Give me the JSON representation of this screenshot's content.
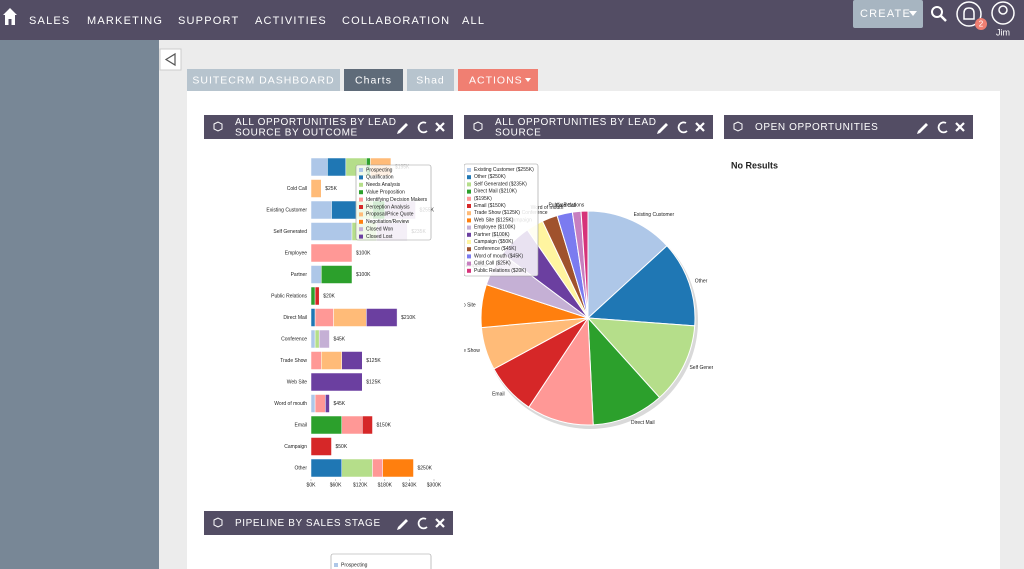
{
  "nav": {
    "items": [
      "SALES",
      "MARKETING",
      "SUPPORT",
      "ACTIVITIES",
      "COLLABORATION",
      "ALL"
    ],
    "create": "CREATE",
    "notifications": "2",
    "user": "Jim"
  },
  "tabs": [
    "SUITECRM DASHBOARD",
    "Charts",
    "Shad",
    "ACTIONS"
  ],
  "dashlets": [
    {
      "title_lines": [
        "ALL OPPORTUNITIES BY LEAD",
        "SOURCE BY OUTCOME"
      ],
      "chart": {
        "type": "bar",
        "categories": [
          null,
          "Cold Call",
          "Existing Customer",
          "Self Generated",
          "Employee",
          "Partner",
          "Public Relations",
          "Direct Mail",
          "Conference",
          "Trade Show",
          "Web Site",
          "Word of mouth",
          "Email",
          "Campaign",
          "Other"
        ],
        "series": [
          {
            "name": "Prospecting",
            "color": "#aec7e8",
            "values": [
              40,
              0,
              50,
              100,
              0,
              25,
              0,
              0,
              10,
              0,
              0,
              10,
              0,
              0,
              0
            ]
          },
          {
            "name": "Qualification",
            "color": "#1f77b4",
            "values": [
              45,
              0,
              60,
              0,
              0,
              0,
              0,
              10,
              0,
              0,
              0,
              0,
              0,
              0,
              75
            ]
          },
          {
            "name": "Needs Analysis",
            "color": "#b5de8a",
            "values": [
              50,
              0,
              40,
              60,
              0,
              0,
              0,
              0,
              10,
              0,
              0,
              0,
              0,
              0,
              75
            ]
          },
          {
            "name": "Value Proposition",
            "color": "#2ca02c",
            "values": [
              10,
              0,
              30,
              0,
              0,
              75,
              10,
              0,
              0,
              0,
              0,
              0,
              75,
              0,
              0
            ]
          },
          {
            "name": "Identifying Decision Makers",
            "color": "#ff9896",
            "values": [
              0,
              0,
              0,
              0,
              100,
              0,
              0,
              45,
              0,
              25,
              0,
              25,
              50,
              0,
              25
            ]
          },
          {
            "name": "Perception Analysis",
            "color": "#d62728",
            "values": [
              0,
              0,
              0,
              0,
              0,
              0,
              10,
              0,
              0,
              0,
              0,
              0,
              25,
              50,
              0
            ]
          },
          {
            "name": "Proposal/Price Quote",
            "color": "#ffbb78",
            "values": [
              50,
              25,
              0,
              0,
              0,
              0,
              0,
              80,
              0,
              50,
              0,
              0,
              0,
              0,
              0
            ]
          },
          {
            "name": "Negotiation/Review",
            "color": "#ff7f0e",
            "values": [
              0,
              0,
              0,
              0,
              0,
              0,
              0,
              0,
              0,
              0,
              0,
              0,
              0,
              0,
              75
            ]
          },
          {
            "name": "Closed Won",
            "color": "#c5b0d5",
            "values": [
              0,
              0,
              75,
              75,
              0,
              0,
              0,
              0,
              25,
              0,
              0,
              0,
              0,
              0,
              0
            ]
          },
          {
            "name": "Closed Lost",
            "color": "#6b3fa0",
            "values": [
              0,
              0,
              0,
              0,
              0,
              0,
              0,
              75,
              0,
              50,
              125,
              10,
              0,
              0,
              0
            ]
          }
        ],
        "value_labels": [
          "$195K",
          "$25K",
          "$255K",
          "$235K",
          "$100K",
          "$100K",
          "$20K",
          "$210K",
          "$45K",
          "$125K",
          "$125K",
          "$45K",
          "$150K",
          "$50K",
          "$250K"
        ],
        "xlim": [
          0,
          300
        ],
        "xticks": [
          {
            "value": 0,
            "label": "$0K"
          },
          {
            "value": 60,
            "label": "$60K"
          },
          {
            "value": 120,
            "label": "$120K"
          },
          {
            "value": 180,
            "label": "$180K"
          },
          {
            "value": 240,
            "label": "$240K"
          },
          {
            "value": 300,
            "label": "$300K"
          }
        ]
      }
    },
    {
      "title_lines": [
        "ALL OPPORTUNITIES BY LEAD",
        "SOURCE"
      ],
      "chart": {
        "type": "pie",
        "categories": [
          "Existing Customer",
          "Other",
          "Self Generated",
          "Direct Mail",
          null,
          "Email",
          "Trade Show",
          "Web Site",
          "Employee",
          "Partner",
          "Campaign",
          "Conference",
          "Word of mouth",
          "Cold Call",
          "Public Relations"
        ],
        "values": [
          255,
          250,
          235,
          210,
          195,
          150,
          125,
          125,
          100,
          100,
          50,
          45,
          45,
          25,
          20
        ],
        "value_labels": [
          "($255K)",
          "($250K)",
          "($235K)",
          "($210K)",
          "($195K)",
          "($150K)",
          "($125K)",
          "($125K)",
          "($100K)",
          "($100K)",
          "($50K)",
          "($45K)",
          "($45K)",
          "($25K)",
          "($20K)"
        ],
        "colors": [
          "#aec7e8",
          "#1f77b4",
          "#b5de8a",
          "#2ca02c",
          "#ff9896",
          "#d62728",
          "#ffbb78",
          "#ff7f0e",
          "#c5b0d5",
          "#6b3fa0",
          "#fff5a0",
          "#a0522d",
          "#7b7bf0",
          "#c77fc0",
          "#d6337a"
        ]
      }
    },
    {
      "title_lines": [
        "OPEN OPPORTUNITIES"
      ],
      "message": "No Results"
    },
    {
      "title_lines": [
        "PIPELINE BY SALES STAGE"
      ],
      "legend": [
        "Prospecting"
      ]
    }
  ]
}
